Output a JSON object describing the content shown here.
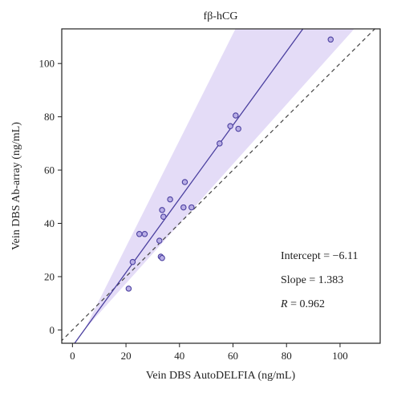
{
  "chart_data": {
    "type": "scatter",
    "title": "fβ-hCG",
    "xlabel": "Vein DBS AutoDELFIA (ng/mL)",
    "ylabel": "Vein DBS Ab-array (ng/mL)",
    "xlim": [
      -4,
      115
    ],
    "ylim": [
      -5,
      113
    ],
    "xticks": [
      0,
      20,
      40,
      60,
      80,
      100
    ],
    "yticks": [
      0,
      20,
      40,
      60,
      80,
      100
    ],
    "grid": false,
    "points": [
      {
        "x": 21,
        "y": 15.5
      },
      {
        "x": 22.5,
        "y": 25.5
      },
      {
        "x": 25,
        "y": 36
      },
      {
        "x": 27,
        "y": 36
      },
      {
        "x": 32.5,
        "y": 33.5
      },
      {
        "x": 33,
        "y": 27.5
      },
      {
        "x": 33.5,
        "y": 27
      },
      {
        "x": 33.5,
        "y": 45
      },
      {
        "x": 34,
        "y": 42.5
      },
      {
        "x": 36.5,
        "y": 49
      },
      {
        "x": 41.5,
        "y": 46
      },
      {
        "x": 42,
        "y": 55.5
      },
      {
        "x": 44.5,
        "y": 46
      },
      {
        "x": 55,
        "y": 70
      },
      {
        "x": 59,
        "y": 76.5
      },
      {
        "x": 61,
        "y": 80.5
      },
      {
        "x": 62,
        "y": 75.5
      },
      {
        "x": 96.5,
        "y": 109
      }
    ],
    "regression": {
      "intercept": -6.11,
      "slope": 1.383
    },
    "identity_line": true,
    "confidence_band_slopes": [
      1.12,
      2.0
    ],
    "colors": {
      "points": "#4a3f9f",
      "regression": "#4a3f9f",
      "band": "#e4dcf7",
      "identity": "#444444"
    },
    "annotations": {
      "intercept_label": "Intercept = −6.11",
      "slope_label": "Slope = 1.383",
      "r_symbol": "R",
      "r_value_text": " = 0.962"
    }
  }
}
